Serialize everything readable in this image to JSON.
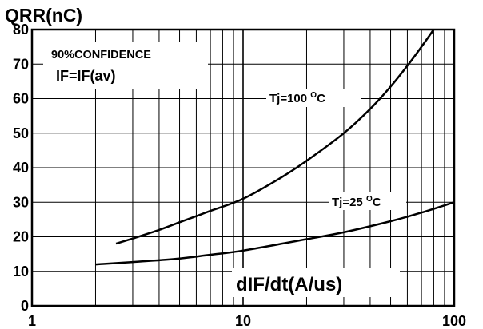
{
  "chart_data": {
    "type": "line",
    "title": "",
    "ylabel": "QRR(nC)",
    "xlabel": "dIF/dt(A/us)",
    "x_scale": "log",
    "xlim": [
      1,
      100
    ],
    "ylim": [
      0,
      80
    ],
    "x_ticks": [
      "1",
      "10",
      "100"
    ],
    "y_ticks": [
      "0",
      "10",
      "20",
      "30",
      "40",
      "50",
      "60",
      "70",
      "80"
    ],
    "grid": true,
    "annotations": [
      "90%CONFIDENCE",
      "IF=IF(av)"
    ],
    "series": [
      {
        "name": "Tj=100 °C",
        "label_main": "Tj=100 ",
        "label_sup": "O",
        "label_unit": "C",
        "x": [
          2.5,
          3,
          4,
          5,
          7,
          10,
          15,
          20,
          30,
          40,
          50,
          60,
          70,
          80
        ],
        "y": [
          18,
          19.5,
          22,
          24.2,
          27.5,
          31,
          37,
          42,
          50,
          57,
          63.5,
          69.5,
          75,
          80
        ]
      },
      {
        "name": "Tj=25 °C",
        "label_main": "Tj=25 ",
        "label_sup": "O",
        "label_unit": "C",
        "x": [
          2,
          3,
          5,
          7,
          10,
          20,
          30,
          50,
          70,
          100
        ],
        "y": [
          12,
          12.7,
          13.7,
          14.8,
          16,
          19.3,
          21.3,
          24.5,
          27,
          30
        ]
      }
    ]
  },
  "colors": {
    "line": "#000000",
    "grid": "#000000",
    "background": "#ffffff"
  }
}
